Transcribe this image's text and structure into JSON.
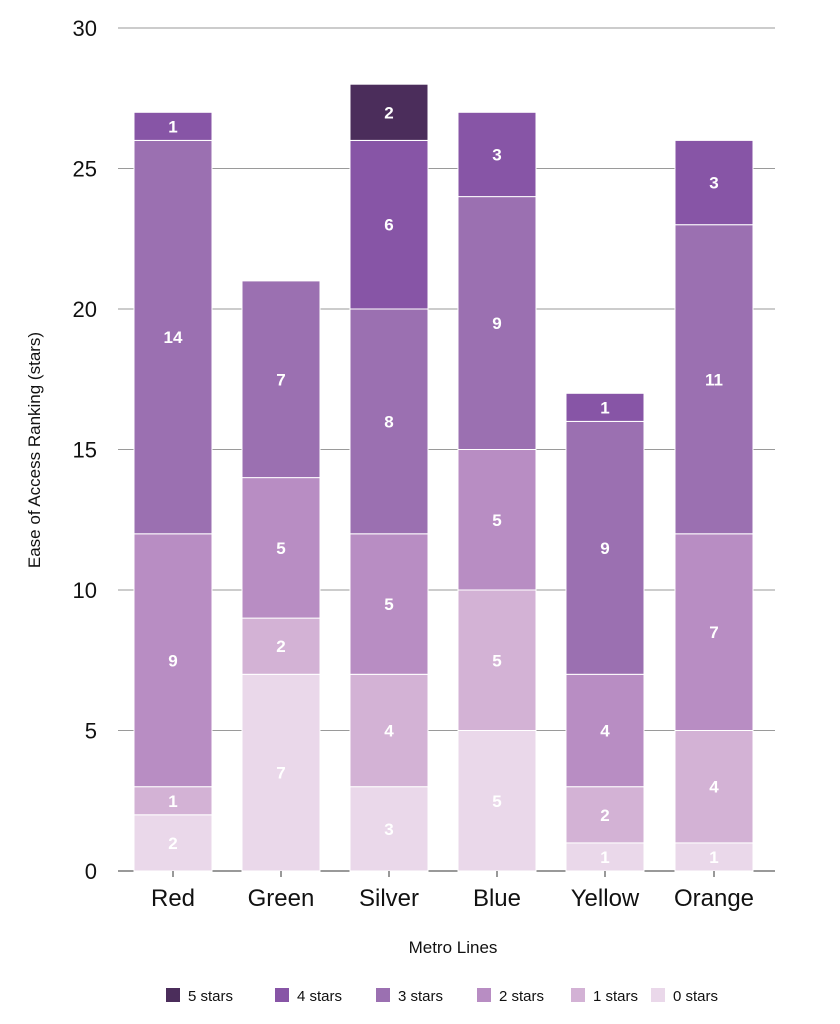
{
  "chart_data": {
    "type": "bar",
    "stacked": true,
    "title": "",
    "xlabel": "Metro Lines",
    "ylabel": "Ease of Access Ranking (stars)",
    "ylim": [
      0,
      30
    ],
    "yticks": [
      0,
      5,
      10,
      15,
      20,
      25,
      30
    ],
    "grid": true,
    "legend_position": "bottom",
    "categories": [
      "Red",
      "Green",
      "Silver",
      "Blue",
      "Yellow",
      "Orange"
    ],
    "series": [
      {
        "name": "0 stars",
        "color": "#ead8ea",
        "label_color": "#ffffff",
        "values": [
          2,
          7,
          3,
          5,
          1,
          1
        ]
      },
      {
        "name": "1 stars",
        "color": "#d3b2d5",
        "label_color": "#ffffff",
        "values": [
          1,
          2,
          4,
          5,
          2,
          4
        ]
      },
      {
        "name": "2 stars",
        "color": "#b88dc3",
        "label_color": "#ffffff",
        "values": [
          9,
          5,
          5,
          5,
          4,
          7
        ]
      },
      {
        "name": "3 stars",
        "color": "#9b70b1",
        "label_color": "#ffffff",
        "values": [
          14,
          7,
          8,
          9,
          9,
          11
        ]
      },
      {
        "name": "4 stars",
        "color": "#8755a6",
        "label_color": "#ffffff",
        "values": [
          1,
          0,
          6,
          3,
          1,
          3
        ]
      },
      {
        "name": "5 stars",
        "color": "#4b2d5b",
        "label_color": "#ffffff",
        "values": [
          0,
          0,
          2,
          0,
          0,
          0
        ]
      }
    ],
    "legend_order": [
      "5 stars",
      "4 stars",
      "3 stars",
      "2 stars",
      "1 stars",
      "0 stars"
    ]
  }
}
